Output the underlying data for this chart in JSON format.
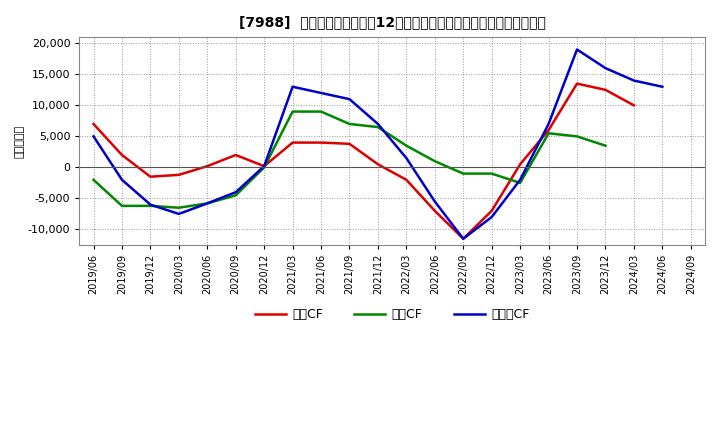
{
  "title": "[7988]  キャッシュフローの12か月移動合計の対前年同期増減額の推移",
  "ylabel": "（百万円）",
  "background_color": "#ffffff",
  "plot_bg_color": "#ffffff",
  "grid_color": "#999999",
  "xlabels": [
    "2019/06",
    "2019/09",
    "2019/12",
    "2020/03",
    "2020/06",
    "2020/09",
    "2020/12",
    "2021/03",
    "2021/06",
    "2021/09",
    "2021/12",
    "2022/03",
    "2022/06",
    "2022/09",
    "2022/12",
    "2023/03",
    "2023/06",
    "2023/09",
    "2023/12",
    "2024/03",
    "2024/06",
    "2024/09"
  ],
  "operating_cf": [
    7000,
    2000,
    -1500,
    -1200,
    200,
    2000,
    200,
    4000,
    4000,
    3800,
    500,
    -2000,
    -7000,
    -11500,
    -7000,
    500,
    6000,
    13500,
    12500,
    10000,
    null,
    null
  ],
  "investing_cf": [
    -2000,
    -6200,
    -6200,
    -6500,
    -5800,
    -4500,
    0,
    9000,
    9000,
    7000,
    6500,
    3500,
    1000,
    -1000,
    -1000,
    -2500,
    5500,
    5000,
    3500,
    null,
    null,
    null
  ],
  "free_cf": [
    5000,
    -2000,
    -6000,
    -7500,
    -5800,
    -4000,
    200,
    13000,
    12000,
    11000,
    7000,
    1500,
    -5500,
    -11500,
    -8000,
    -2000,
    7000,
    19000,
    16000,
    14000,
    13000,
    null
  ],
  "operating_color": "#dd0000",
  "investing_color": "#008800",
  "free_color": "#0000cc",
  "ylim": [
    -12500,
    21000
  ],
  "yticks": [
    -10000,
    -5000,
    0,
    5000,
    10000,
    15000,
    20000
  ],
  "legend_labels": [
    "営業CF",
    "投資CF",
    "フリーCF"
  ]
}
